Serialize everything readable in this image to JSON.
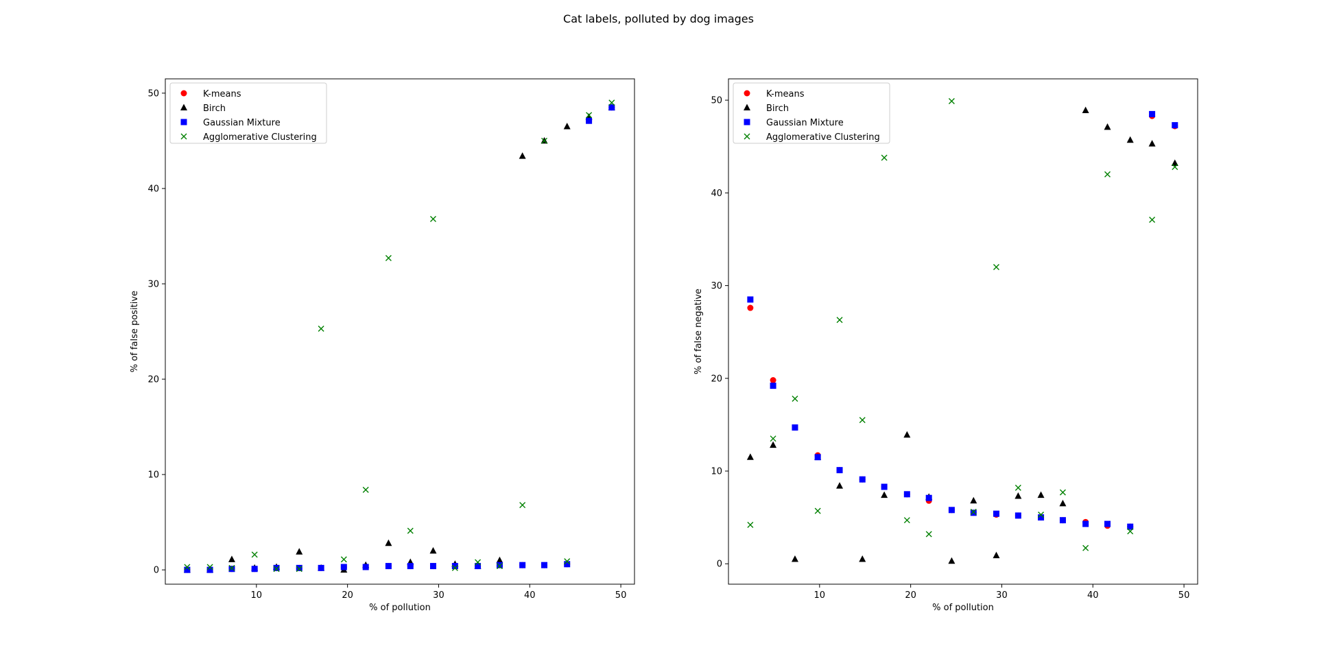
{
  "figure": {
    "suptitle": "Cat labels, polluted by dog images"
  },
  "chart_data": [
    {
      "type": "scatter",
      "title": "",
      "xlabel": "% of pollution",
      "ylabel": "% of false positive",
      "xlim": [
        0,
        51.5
      ],
      "ylim": [
        -1.5,
        51.5
      ],
      "xticks": [
        10,
        20,
        30,
        40,
        50
      ],
      "yticks": [
        0,
        10,
        20,
        30,
        40,
        50
      ],
      "grid": false,
      "legend_position": "upper-left",
      "series": [
        {
          "name": "K-means",
          "marker": "circle",
          "color": "#ff0000",
          "x": [
            2.4,
            4.9,
            7.3,
            9.8,
            12.2,
            14.7,
            17.1,
            19.6,
            22.0,
            24.5,
            26.9,
            29.4,
            31.8,
            34.3,
            36.7,
            39.2,
            41.6,
            44.1,
            46.5,
            49.0
          ],
          "y": [
            0.0,
            0.0,
            0.1,
            0.1,
            0.2,
            0.2,
            0.2,
            0.3,
            0.3,
            0.4,
            0.4,
            0.4,
            0.4,
            0.4,
            0.5,
            0.5,
            0.5,
            0.6,
            47.1,
            48.5
          ]
        },
        {
          "name": "Birch",
          "marker": "triangle",
          "color": "#000000",
          "x": [
            2.4,
            4.9,
            7.3,
            9.8,
            12.2,
            14.7,
            17.1,
            19.6,
            22.0,
            24.5,
            26.9,
            29.4,
            31.8,
            34.3,
            36.7,
            39.2,
            41.6,
            44.1,
            46.5,
            49.0
          ],
          "y": [
            0.0,
            0.0,
            1.1,
            0.2,
            0.3,
            1.9,
            0.2,
            0.0,
            0.5,
            2.8,
            0.8,
            2.0,
            0.6,
            0.4,
            1.0,
            43.4,
            45.0,
            46.5,
            47.5,
            48.5
          ]
        },
        {
          "name": "Gaussian Mixture",
          "marker": "square",
          "color": "#0000ff",
          "x": [
            2.4,
            4.9,
            7.3,
            9.8,
            12.2,
            14.7,
            17.1,
            19.6,
            22.0,
            24.5,
            26.9,
            29.4,
            31.8,
            34.3,
            36.7,
            39.2,
            41.6,
            44.1,
            46.5,
            49.0
          ],
          "y": [
            0.0,
            0.0,
            0.1,
            0.1,
            0.2,
            0.2,
            0.2,
            0.3,
            0.3,
            0.4,
            0.4,
            0.4,
            0.4,
            0.4,
            0.5,
            0.5,
            0.5,
            0.6,
            47.1,
            48.5
          ]
        },
        {
          "name": "Agglomerative Clustering",
          "marker": "x",
          "color": "#008000",
          "x": [
            2.4,
            4.9,
            7.3,
            9.8,
            12.2,
            14.7,
            17.1,
            19.6,
            22.0,
            24.5,
            26.9,
            29.4,
            31.8,
            34.3,
            36.7,
            39.2,
            41.6,
            44.1,
            46.5,
            49.0
          ],
          "y": [
            0.3,
            0.3,
            0.2,
            1.6,
            0.1,
            0.1,
            25.3,
            1.1,
            8.4,
            32.7,
            4.1,
            36.8,
            0.2,
            0.8,
            0.4,
            6.8,
            45.0,
            0.9,
            47.7,
            49.0
          ]
        }
      ]
    },
    {
      "type": "scatter",
      "title": "",
      "xlabel": "% of pollution",
      "ylabel": "% of false negative",
      "xlim": [
        0,
        51.5
      ],
      "ylim": [
        -2.2,
        52.3
      ],
      "xticks": [
        10,
        20,
        30,
        40,
        50
      ],
      "yticks": [
        0,
        10,
        20,
        30,
        40,
        50
      ],
      "grid": false,
      "legend_position": "upper-left",
      "series": [
        {
          "name": "K-means",
          "marker": "circle",
          "color": "#ff0000",
          "x": [
            2.4,
            4.9,
            7.3,
            9.8,
            12.2,
            14.7,
            17.1,
            19.6,
            22.0,
            24.5,
            26.9,
            29.4,
            31.8,
            34.3,
            36.7,
            39.2,
            41.6,
            44.1,
            46.5,
            49.0
          ],
          "y": [
            27.6,
            19.8,
            14.7,
            11.7,
            10.1,
            9.1,
            8.3,
            7.5,
            6.8,
            5.8,
            5.5,
            5.3,
            5.2,
            5.0,
            4.7,
            4.5,
            4.1,
            4.0,
            48.3,
            47.2
          ]
        },
        {
          "name": "Birch",
          "marker": "triangle",
          "color": "#000000",
          "x": [
            2.4,
            4.9,
            7.3,
            9.8,
            12.2,
            14.7,
            17.1,
            19.6,
            22.0,
            24.5,
            26.9,
            29.4,
            31.8,
            34.3,
            36.7,
            39.2,
            41.6,
            44.1,
            46.5,
            49.0
          ],
          "y": [
            11.5,
            12.8,
            0.5,
            11.5,
            8.4,
            0.5,
            7.4,
            13.9,
            7.2,
            0.3,
            6.8,
            0.9,
            7.3,
            7.4,
            6.5,
            48.9,
            47.1,
            45.7,
            45.3,
            43.2
          ]
        },
        {
          "name": "Gaussian Mixture",
          "marker": "square",
          "color": "#0000ff",
          "x": [
            2.4,
            4.9,
            7.3,
            9.8,
            12.2,
            14.7,
            17.1,
            19.6,
            22.0,
            24.5,
            26.9,
            29.4,
            31.8,
            34.3,
            36.7,
            39.2,
            41.6,
            44.1,
            46.5,
            49.0
          ],
          "y": [
            28.5,
            19.2,
            14.7,
            11.5,
            10.1,
            9.1,
            8.3,
            7.5,
            7.1,
            5.8,
            5.5,
            5.4,
            5.2,
            5.0,
            4.7,
            4.3,
            4.3,
            4.0,
            48.5,
            47.3
          ]
        },
        {
          "name": "Agglomerative Clustering",
          "marker": "x",
          "color": "#008000",
          "x": [
            2.4,
            4.9,
            7.3,
            9.8,
            12.2,
            14.7,
            17.1,
            19.6,
            22.0,
            24.5,
            26.9,
            29.4,
            31.8,
            34.3,
            36.7,
            39.2,
            41.6,
            44.1,
            46.5,
            49.0
          ],
          "y": [
            4.2,
            13.5,
            17.8,
            5.7,
            26.3,
            15.5,
            43.8,
            4.7,
            3.2,
            49.9,
            5.6,
            32.0,
            8.2,
            5.3,
            7.7,
            1.7,
            42.0,
            3.5,
            37.1,
            42.8
          ]
        }
      ]
    }
  ]
}
